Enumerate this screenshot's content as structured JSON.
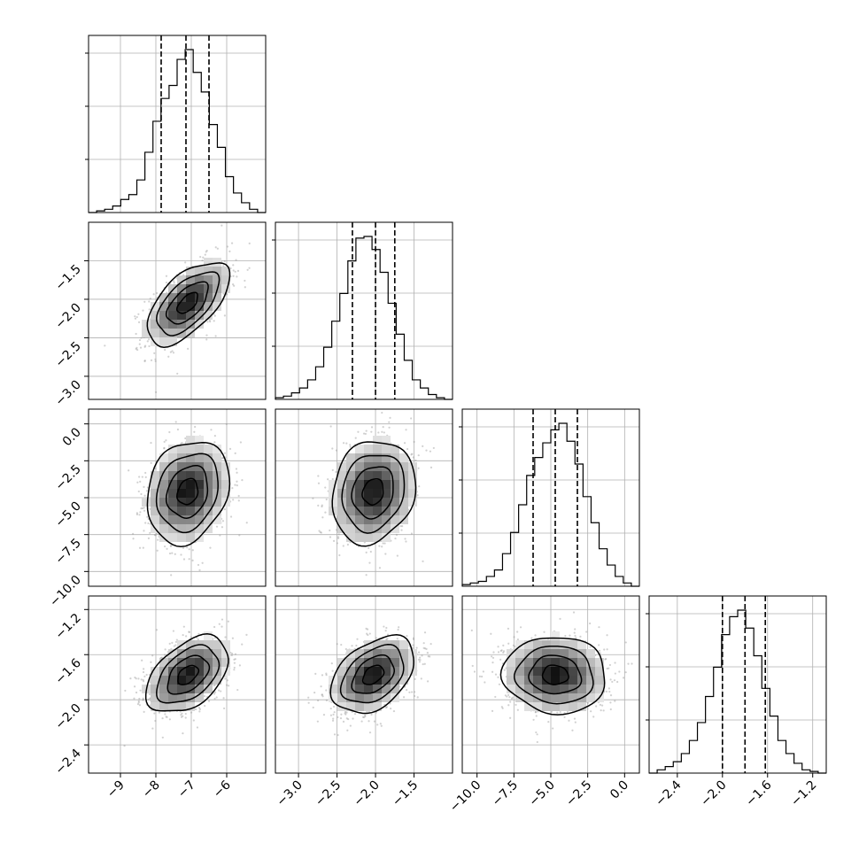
{
  "chart_data": {
    "type": "corner",
    "grid": true,
    "dims": [
      {
        "range": [
          -9.9,
          -4.9
        ],
        "ticks": [
          -9,
          -8,
          -7,
          -6
        ],
        "tick_labels": [
          "−9",
          "−8",
          "−7",
          "−6"
        ],
        "quantiles": [
          -7.85,
          -7.15,
          -6.5
        ]
      },
      {
        "range": [
          -3.3,
          -1.0
        ],
        "ticks": [
          -3.0,
          -2.5,
          -2.0,
          -1.5
        ],
        "tick_labels": [
          "−3.0",
          "−2.5",
          "−2.0",
          "−1.5"
        ],
        "quantiles": [
          -2.3,
          -2.0,
          -1.75
        ]
      },
      {
        "range": [
          -11.0,
          1.0
        ],
        "ticks": [
          -10.0,
          -7.5,
          -5.0,
          -2.5,
          0.0
        ],
        "tick_labels": [
          "−10.0",
          "−7.5",
          "−5.0",
          "−2.5",
          "0.0"
        ],
        "quantiles": [
          -6.2,
          -4.7,
          -3.2
        ]
      },
      {
        "range": [
          -2.65,
          -1.08
        ],
        "ticks": [
          -2.4,
          -2.0,
          -1.6,
          -1.2
        ],
        "tick_labels": [
          "−2.4",
          "−2.0",
          "−1.6",
          "−1.2"
        ],
        "quantiles": [
          -2.0,
          -1.8,
          -1.62
        ]
      }
    ],
    "hist": [
      [
        0,
        1,
        2,
        4,
        8,
        11,
        20,
        37,
        56,
        70,
        78,
        94,
        100,
        86,
        74,
        54,
        40,
        22,
        12,
        6,
        2,
        0
      ],
      [
        1,
        2,
        4,
        7,
        12,
        20,
        32,
        48,
        65,
        85,
        99,
        100,
        92,
        78,
        59,
        40,
        24,
        12,
        7,
        3,
        1,
        0
      ],
      [
        1,
        2,
        3,
        6,
        10,
        20,
        33,
        50,
        68,
        79,
        88,
        96,
        100,
        89,
        75,
        55,
        39,
        23,
        13,
        6,
        2,
        0
      ],
      [
        0,
        2,
        4,
        7,
        12,
        20,
        31,
        47,
        65,
        85,
        96,
        100,
        89,
        72,
        52,
        35,
        20,
        12,
        6,
        2,
        1,
        0
      ]
    ],
    "panels": [
      {
        "row": 1,
        "col": 0,
        "center": [
          -7.1,
          -2.05
        ],
        "sigma": [
          0.58,
          0.27
        ],
        "rho": 0.6
      },
      {
        "row": 2,
        "col": 0,
        "center": [
          -7.1,
          -4.6
        ],
        "sigma": [
          0.58,
          1.75
        ],
        "rho": 0.2
      },
      {
        "row": 2,
        "col": 1,
        "center": [
          -2.03,
          -4.6
        ],
        "sigma": [
          0.27,
          1.75
        ],
        "rho": 0.15
      },
      {
        "row": 3,
        "col": 0,
        "center": [
          -7.1,
          -1.78
        ],
        "sigma": [
          0.58,
          0.17
        ],
        "rho": 0.45
      },
      {
        "row": 3,
        "col": 1,
        "center": [
          -2.03,
          -1.78
        ],
        "sigma": [
          0.27,
          0.17
        ],
        "rho": 0.4
      },
      {
        "row": 3,
        "col": 2,
        "center": [
          -4.7,
          -1.78
        ],
        "sigma": [
          1.75,
          0.17
        ],
        "rho": -0.05
      }
    ],
    "contour_levels_sigma": [
      0.5,
      1.0,
      1.5,
      2.0
    ]
  }
}
